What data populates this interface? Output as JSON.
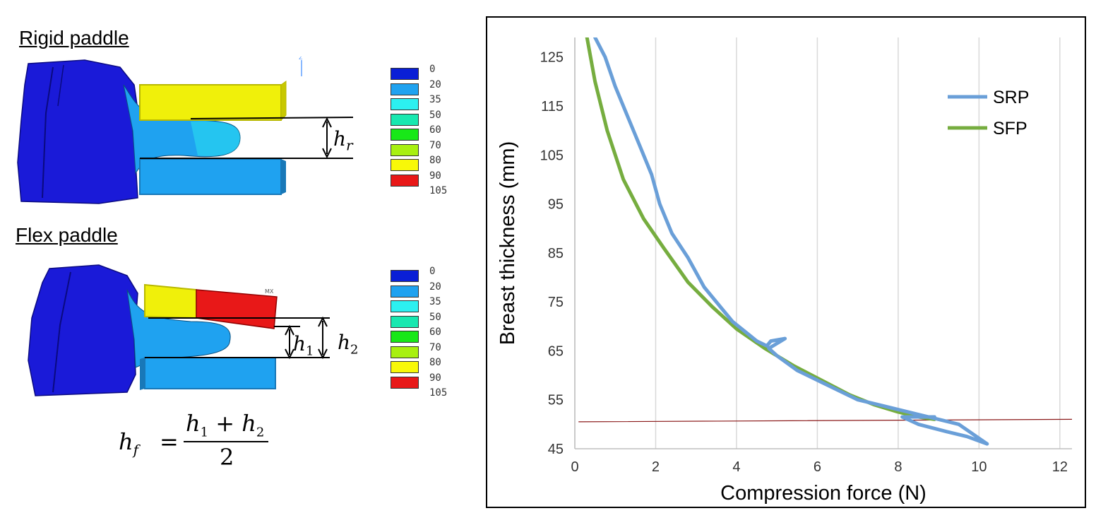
{
  "fem": {
    "rigid_title": "Rigid paddle",
    "flex_title": "Flex paddle",
    "legend_values": [
      "0",
      "20",
      "35",
      "50",
      "60",
      "70",
      "80",
      "90",
      "105"
    ],
    "legend_colors": [
      "#0a1fd6",
      "#1fa2f0",
      "#2cf0f0",
      "#18e8b0",
      "#18e818",
      "#a8f010",
      "#f8f808",
      "#e81818",
      "#e81818"
    ],
    "rigid_gap_var": "h",
    "rigid_gap_sub": "r",
    "flex_gap1_var": "h",
    "flex_gap1_sub": "1",
    "flex_gap2_var": "h",
    "flex_gap2_sub": "2",
    "formula": {
      "lhs_var": "h",
      "lhs_sub": "f",
      "eq": "=",
      "num_a": "h",
      "num_a_sub": "1",
      "plus": "+",
      "num_b": "h",
      "num_b_sub": "2",
      "den": "2"
    },
    "axis_triad_letter": "Z",
    "mx_marker": "MX",
    "colors": {
      "breast_dark": "#1a1ad8",
      "breast_mid": "#1fa2f0",
      "breast_light": "#2ce8f0",
      "paddle_yellow": "#f0f00a",
      "paddle_yellow_edge": "#b8b800",
      "paddle_red": "#e81818",
      "plate_blue": "#1fa2f0",
      "plate_blue_edge": "#1878b8"
    }
  },
  "chart_data": {
    "type": "line",
    "xlabel": "Compression force (N)",
    "ylabel": "Breast thickness (mm)",
    "xlim": [
      0,
      12.3
    ],
    "ylim": [
      45,
      129
    ],
    "xticks": [
      0,
      2,
      4,
      6,
      8,
      10,
      12
    ],
    "yticks": [
      45,
      55,
      65,
      75,
      85,
      95,
      105,
      115,
      125
    ],
    "grid": "vertical",
    "legend_position": "top-right",
    "series": [
      {
        "name": "SRP",
        "color": "#6a9fd8",
        "x": [
          0.5,
          0.75,
          1.0,
          1.3,
          1.6,
          1.9,
          2.1,
          2.4,
          2.8,
          3.2,
          3.6,
          3.9,
          4.2,
          4.5,
          4.75,
          4.85,
          5.2,
          4.8,
          5.0,
          5.5,
          6.0,
          6.5,
          7.0,
          7.5,
          8.0,
          8.5,
          9.0,
          9.5,
          10.2,
          9.7,
          9.2,
          8.5,
          8.1,
          8.5,
          8.9
        ],
        "y": [
          129,
          125,
          119,
          113,
          107,
          101,
          95,
          89,
          84,
          78,
          74,
          71,
          69,
          67,
          66,
          67,
          67.5,
          65.5,
          64,
          61,
          59,
          57,
          55,
          54,
          53,
          52,
          51,
          50,
          46,
          47.5,
          48.5,
          50,
          51.5,
          51.5,
          51.5
        ]
      },
      {
        "name": "SFP",
        "color": "#76ad3f",
        "x": [
          0.3,
          0.5,
          0.8,
          1.2,
          1.7,
          2.2,
          2.8,
          3.4,
          4.0,
          4.7,
          5.4,
          6.1,
          6.8,
          7.4,
          8.0,
          8.5,
          8.9
        ],
        "y": [
          129,
          120,
          110,
          100,
          92,
          86,
          79,
          74,
          69.5,
          65.5,
          62,
          59,
          56,
          54,
          52.5,
          51.5,
          51
        ]
      },
      {
        "name": "",
        "color": "#8b1a1a",
        "x": [
          0.1,
          12.3
        ],
        "y": [
          50.5,
          51.0
        ]
      }
    ]
  }
}
